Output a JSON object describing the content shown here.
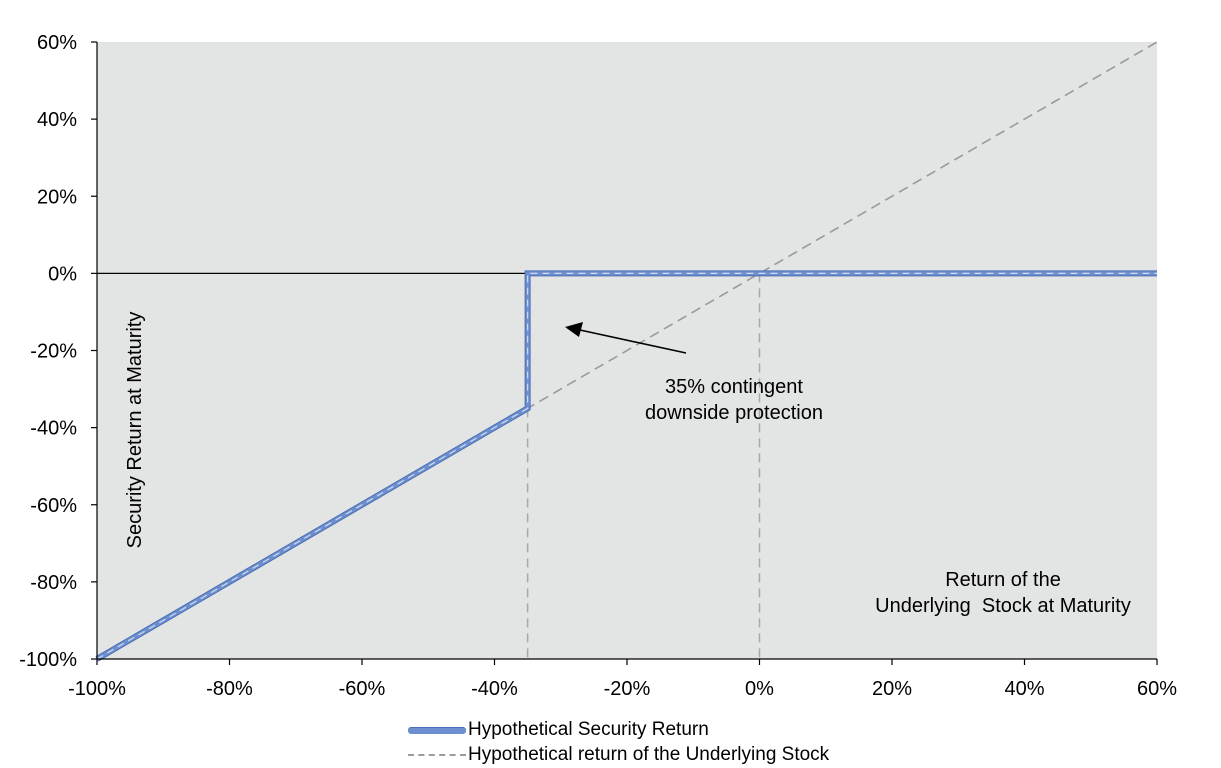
{
  "chart_data": {
    "type": "line",
    "xlim": [
      -100,
      60
    ],
    "ylim": [
      -100,
      60
    ],
    "x_ticks": [
      "-100%",
      "-80%",
      "-60%",
      "-40%",
      "-20%",
      "0%",
      "20%",
      "40%",
      "60%"
    ],
    "y_ticks": [
      "60%",
      "40%",
      "20%",
      "0%",
      "-20%",
      "-40%",
      "-60%",
      "-80%",
      "-100%"
    ],
    "ylabel": "Security Return at Maturity",
    "xlabel_lines": [
      "Return of the",
      "Underlying  Stock at Maturity"
    ],
    "annotation_lines": [
      "35% contingent",
      "downside protection"
    ],
    "series": [
      {
        "name": "Hypothetical Security Return",
        "style": "solid",
        "color": "#6d8fcf",
        "points": [
          [
            -100,
            -100
          ],
          [
            -35,
            -35
          ],
          [
            -35,
            0
          ],
          [
            60,
            0
          ]
        ]
      },
      {
        "name": "Hypothetical return of the Underlying Stock",
        "style": "dashed",
        "color": "#9a9a9a",
        "points": [
          [
            -100,
            -100
          ],
          [
            60,
            60
          ]
        ]
      }
    ],
    "reference_lines": [
      {
        "orientation": "vertical",
        "x": -35,
        "style": "dashed"
      },
      {
        "orientation": "vertical",
        "x": 0,
        "style": "dashed"
      },
      {
        "orientation": "horizontal",
        "y": 0,
        "style": "solid"
      }
    ],
    "plot_background": "#e3e4e4",
    "grid": false,
    "legend_position": "bottom"
  }
}
